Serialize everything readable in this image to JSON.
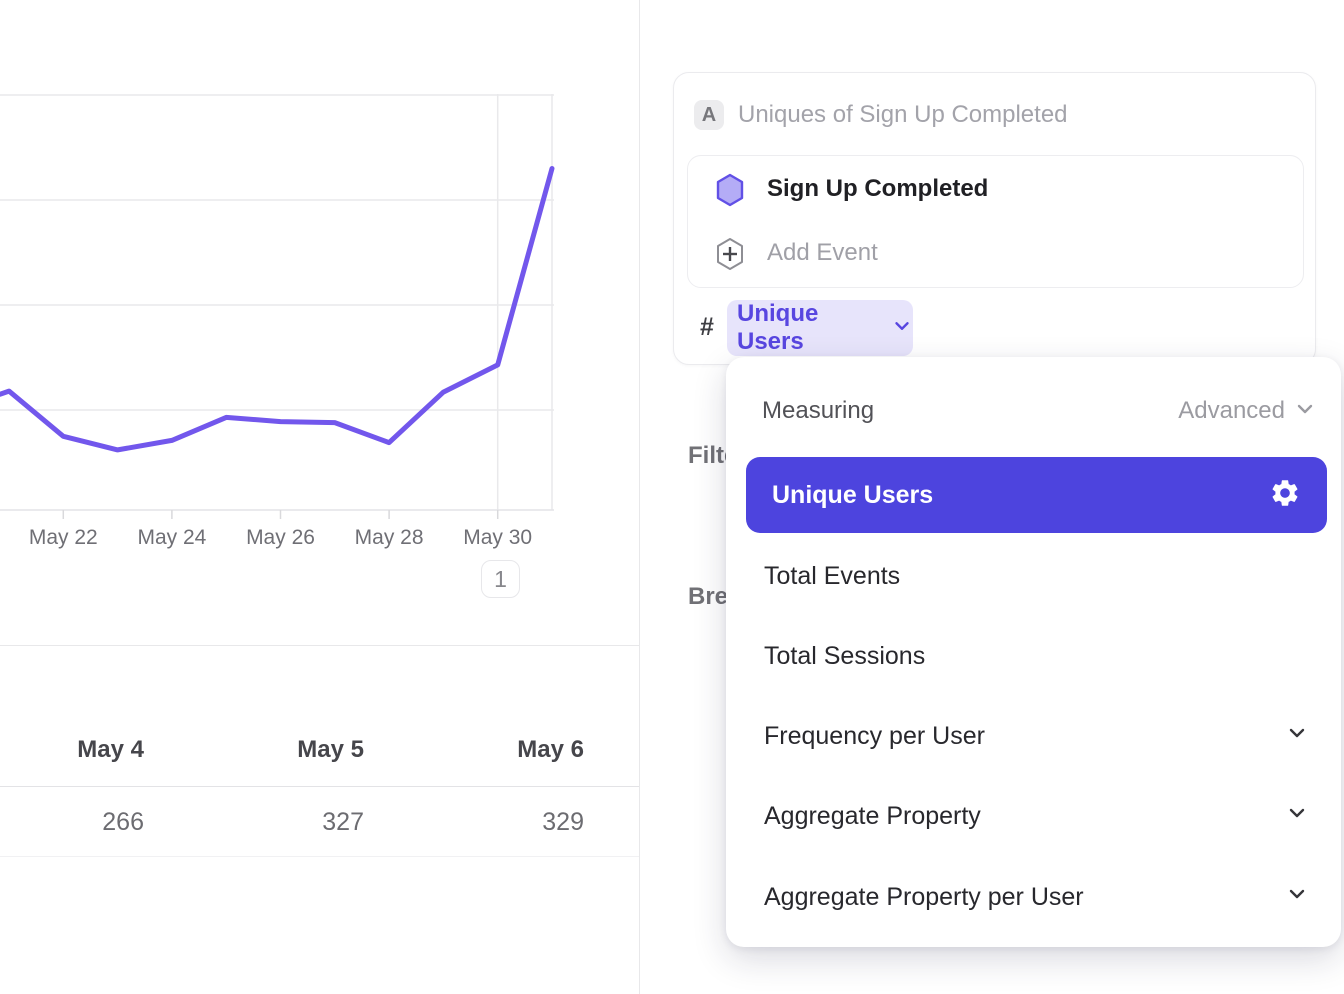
{
  "chart_data": {
    "type": "line",
    "title": "Uniques of Sign Up Completed",
    "xlabel": "",
    "ylabel": "",
    "ylim": [
      0,
      400
    ],
    "grid": true,
    "legend_position": "none",
    "line_color": "#7257ec",
    "series": [
      {
        "name": "Sign Up Completed",
        "points": [
          {
            "day": 20.83,
            "value": 115
          },
          {
            "day": 21,
            "value": 118
          },
          {
            "day": 22,
            "value": 75
          },
          {
            "day": 23,
            "value": 62
          },
          {
            "day": 24,
            "value": 71
          },
          {
            "day": 25,
            "value": 93
          },
          {
            "day": 26,
            "value": 89
          },
          {
            "day": 27,
            "value": 88
          },
          {
            "day": 28,
            "value": 69
          },
          {
            "day": 29,
            "value": 117
          },
          {
            "day": 30,
            "value": 143
          },
          {
            "day": 31,
            "value": 330
          }
        ]
      }
    ],
    "x_ticks": [
      {
        "day": 22,
        "label": "May 22"
      },
      {
        "day": 24,
        "label": "May 24"
      },
      {
        "day": 26,
        "label": "May 26"
      },
      {
        "day": 28,
        "label": "May 28"
      },
      {
        "day": 30,
        "label": "May 30"
      }
    ],
    "y_gridline_values": [
      400,
      300,
      200,
      100
    ],
    "vertical_gridline_days": [
      30,
      31
    ],
    "annotation_badge": "1"
  },
  "table": {
    "columns": [
      "May 4",
      "May 5",
      "May 6"
    ],
    "values": [
      "266",
      "327",
      "329"
    ]
  },
  "metric_card": {
    "series_label": "A",
    "title": "Uniques of Sign Up Completed",
    "event_name": "Sign Up Completed",
    "add_event_label": "Add Event",
    "hash_symbol": "#",
    "measure_chip_label": "Unique Users"
  },
  "background_labels": {
    "filter": "Filter",
    "breakdown": "Breakdown"
  },
  "dropdown": {
    "header_label": "Measuring",
    "mode_label": "Advanced",
    "selected_item": "Unique Users",
    "items": [
      {
        "label": "Total Events"
      },
      {
        "label": "Total Sessions"
      },
      {
        "label": "Frequency per User"
      },
      {
        "label": "Aggregate Property"
      },
      {
        "label": "Aggregate Property per User"
      }
    ]
  },
  "colors": {
    "accent": "#4d44de",
    "chip_bg": "#e7e4fb",
    "chip_text": "#5846e0",
    "chart_line": "#7257ec",
    "gridline": "#e9e9eb",
    "divider": "#e8e8ea"
  }
}
